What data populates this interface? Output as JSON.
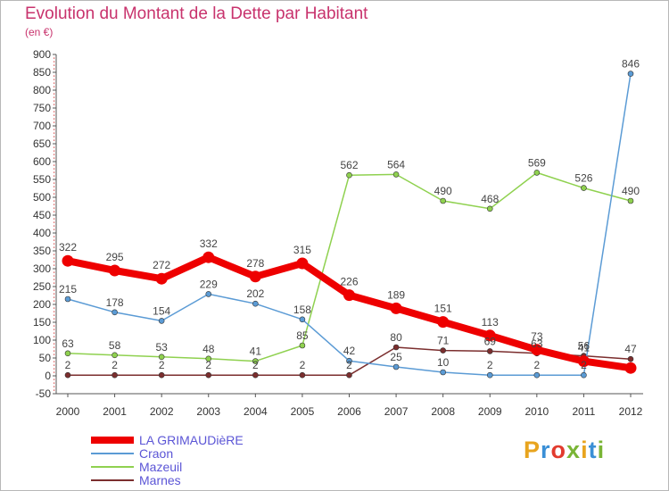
{
  "title": "Evolution du Montant de la Dette par Habitant",
  "unit": "(en €)",
  "logo": {
    "text": "Proxiti",
    "colors": [
      "#e8a41e",
      "#3a8fd6",
      "#e23b2e",
      "#7ab536",
      "#e8a41e",
      "#3a8fd6",
      "#7ab536"
    ]
  },
  "chart_data": {
    "type": "line",
    "title": "Evolution du Montant de la Dette par Habitant",
    "subtitle": "(en €)",
    "x": [
      "2000",
      "2001",
      "2002",
      "2003",
      "2004",
      "2005",
      "2006",
      "2007",
      "2008",
      "2009",
      "2010",
      "2011",
      "2012"
    ],
    "ylim": [
      -50,
      900
    ],
    "yticks": [
      -50,
      0,
      50,
      100,
      150,
      200,
      250,
      300,
      350,
      400,
      450,
      500,
      550,
      600,
      650,
      700,
      750,
      800,
      850,
      900
    ],
    "grid": false,
    "legend": "bottom-left",
    "series": [
      {
        "name": "LA GRIMAUDièRE",
        "color": "#ee0000",
        "values": [
          322,
          295,
          272,
          332,
          278,
          315,
          226,
          189,
          151,
          113,
          73,
          41,
          22
        ],
        "labels": [
          "322",
          "295",
          "272",
          "332",
          "278",
          "315",
          "226",
          "189",
          "151",
          "113",
          "73",
          "41",
          ""
        ]
      },
      {
        "name": "Craon",
        "color": "#5b9bd5",
        "values": [
          215,
          178,
          154,
          229,
          202,
          158,
          42,
          25,
          10,
          2,
          2,
          2,
          846
        ],
        "labels": [
          "215",
          "178",
          "154",
          "229",
          "202",
          "158",
          "42",
          "25",
          "10",
          "2",
          "2",
          "2",
          "846"
        ]
      },
      {
        "name": "Mazeuil",
        "color": "#8fd14f",
        "values": [
          63,
          58,
          53,
          48,
          41,
          85,
          562,
          564,
          490,
          468,
          569,
          526,
          490
        ],
        "labels": [
          "63",
          "58",
          "53",
          "48",
          "41",
          "85",
          "562",
          "564",
          "490",
          "468",
          "569",
          "526",
          "490"
        ]
      },
      {
        "name": "Marnes",
        "color": "#7b2e2e",
        "values": [
          2,
          2,
          2,
          2,
          2,
          2,
          2,
          80,
          71,
          69,
          63,
          56,
          47
        ],
        "labels": [
          "2",
          "2",
          "2",
          "2",
          "2",
          "2",
          "2",
          "80",
          "71",
          "69",
          "63",
          "56",
          "47"
        ]
      }
    ]
  }
}
